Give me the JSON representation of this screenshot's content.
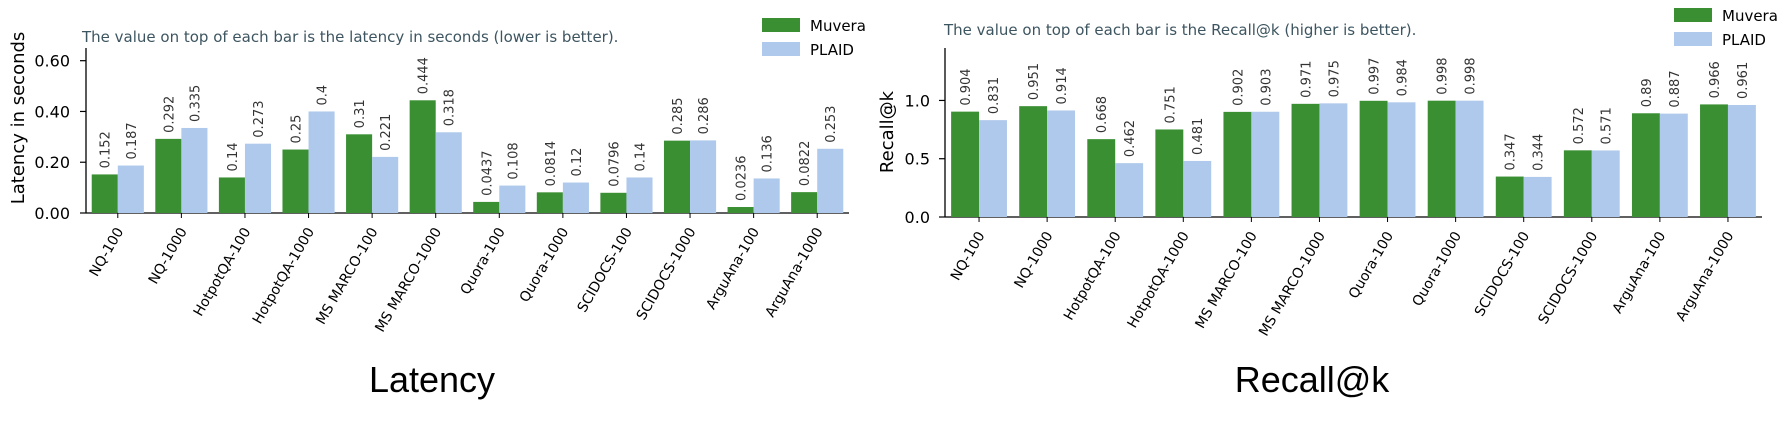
{
  "colors": {
    "muvera": "#3a8f33",
    "plaid": "#aec9eb",
    "note": "#3d5560",
    "axis": "#000000"
  },
  "chart_data": [
    {
      "type": "bar",
      "panel_label": "Latency",
      "note": "The value on top of each bar is the latency in seconds (lower is better).",
      "ylabel": "Latency in seconds",
      "ylim": [
        0,
        0.65
      ],
      "yticks": [
        0.0,
        0.2,
        0.4,
        0.6
      ],
      "ytick_labels": [
        "0.00",
        "0.20",
        "0.40",
        "0.60"
      ],
      "categories": [
        "NQ-100",
        "NQ-1000",
        "HotpotQA-100",
        "HotpotQA-1000",
        "MS MARCO-100",
        "MS MARCO-1000",
        "Quora-100",
        "Quora-1000",
        "SCIDOCS-100",
        "SCIDOCS-1000",
        "ArguAna-100",
        "ArguAna-1000"
      ],
      "series": [
        {
          "name": "Muvera",
          "values": [
            0.152,
            0.292,
            0.14,
            0.25,
            0.31,
            0.444,
            0.0437,
            0.0814,
            0.0796,
            0.285,
            0.0236,
            0.0822
          ],
          "labels": [
            "0.152",
            "0.292",
            "0.14",
            "0.25",
            "0.31",
            "0.444",
            "0.0437",
            "0.0814",
            "0.0796",
            "0.285",
            "0.0236",
            "0.0822"
          ]
        },
        {
          "name": "PLAID",
          "values": [
            0.187,
            0.335,
            0.273,
            0.4,
            0.221,
            0.318,
            0.108,
            0.12,
            0.14,
            0.286,
            0.136,
            0.253
          ],
          "labels": [
            "0.187",
            "0.335",
            "0.273",
            "0.4",
            "0.221",
            "0.318",
            "0.108",
            "0.12",
            "0.14",
            "0.286",
            "0.136",
            "0.253"
          ]
        }
      ],
      "legend": [
        "Muvera",
        "PLAID"
      ],
      "legend_position": "top-right"
    },
    {
      "type": "bar",
      "panel_label": "Recall@k",
      "note": "The value on top of each bar is the Recall@k (higher is better).",
      "ylabel": "Recall@k",
      "ylim": [
        0,
        1.45
      ],
      "yticks": [
        0.0,
        0.5,
        1.0
      ],
      "ytick_labels": [
        "0.0",
        "0.5",
        "1.0"
      ],
      "categories": [
        "NQ-100",
        "NQ-1000",
        "HotpotQA-100",
        "HotpotQA-1000",
        "MS MARCO-100",
        "MS MARCO-1000",
        "Quora-100",
        "Quora-1000",
        "SCIDOCS-100",
        "SCIDOCS-1000",
        "ArguAna-100",
        "ArguAna-1000"
      ],
      "series": [
        {
          "name": "Muvera",
          "values": [
            0.904,
            0.951,
            0.668,
            0.751,
            0.902,
            0.971,
            0.997,
            0.998,
            0.347,
            0.572,
            0.89,
            0.966
          ],
          "labels": [
            "0.904",
            "0.951",
            "0.668",
            "0.751",
            "0.902",
            "0.971",
            "0.997",
            "0.998",
            "0.347",
            "0.572",
            "0.89",
            "0.966"
          ]
        },
        {
          "name": "PLAID",
          "values": [
            0.831,
            0.914,
            0.462,
            0.481,
            0.903,
            0.975,
            0.984,
            0.998,
            0.344,
            0.571,
            0.887,
            0.961
          ],
          "labels": [
            "0.831",
            "0.914",
            "0.462",
            "0.481",
            "0.903",
            "0.975",
            "0.984",
            "0.998",
            "0.344",
            "0.571",
            "0.887",
            "0.961"
          ]
        }
      ],
      "legend": [
        "Muvera",
        "PLAID"
      ],
      "legend_position": "top-right"
    }
  ]
}
